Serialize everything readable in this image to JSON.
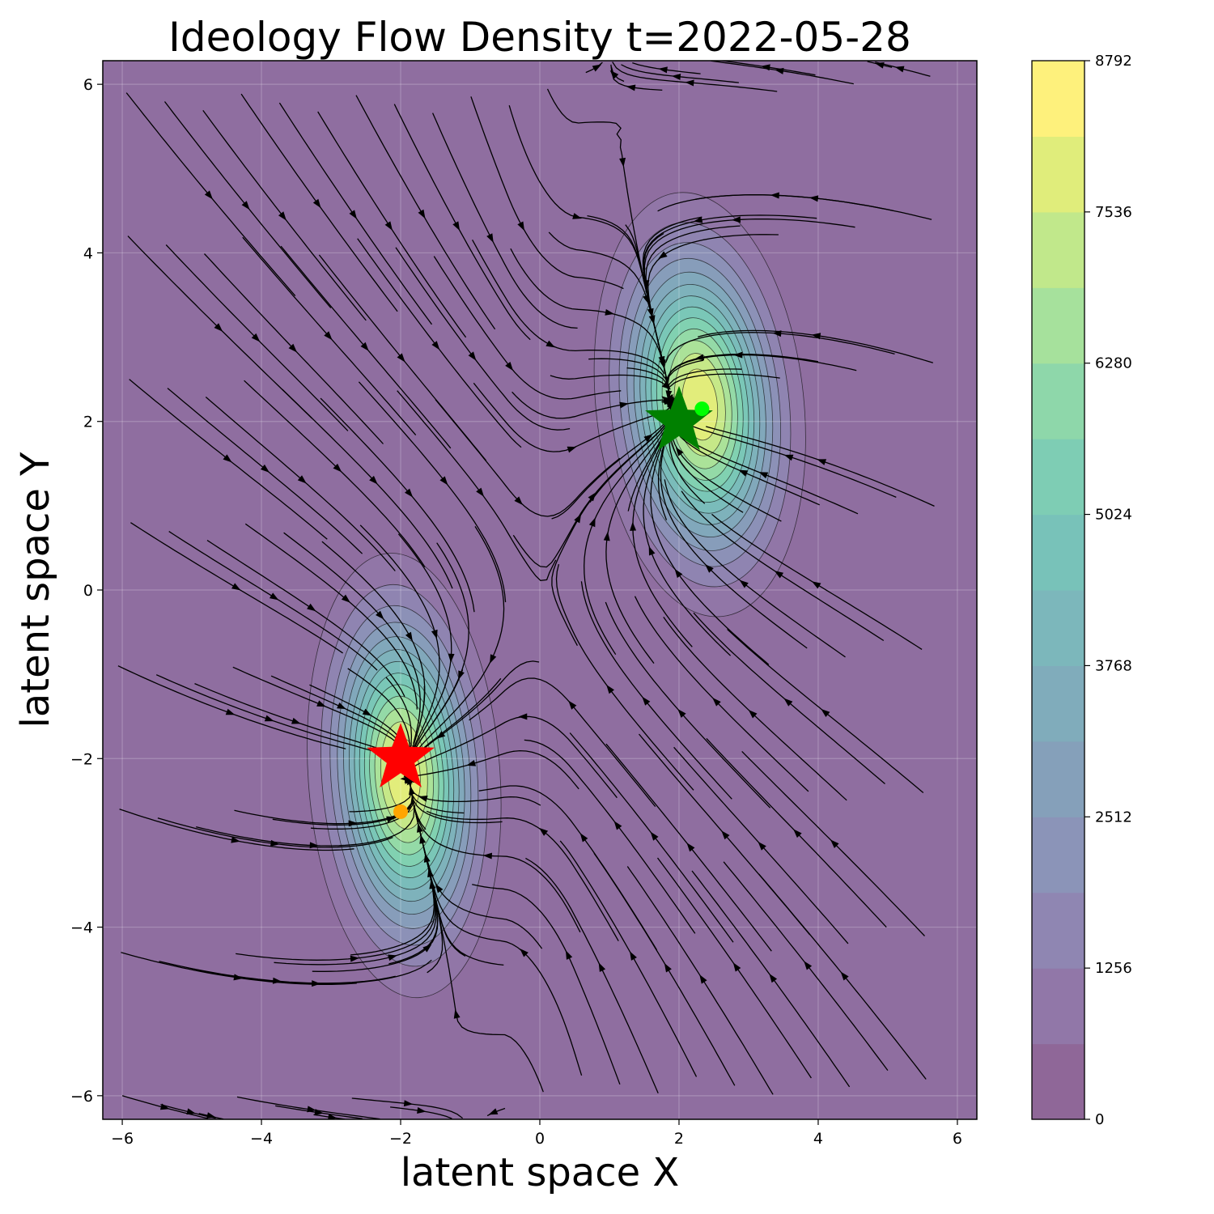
{
  "chart_data": {
    "type": "contour",
    "title": "Ideology Flow Density t=2022-05-28",
    "xlabel": "latent space X",
    "ylabel": "latent space Y",
    "xlim": [
      -6.28,
      6.28
    ],
    "ylim": [
      -6.28,
      6.28
    ],
    "x_ticks": [
      -6,
      -4,
      -2,
      0,
      2,
      4,
      6
    ],
    "y_ticks": [
      -6,
      -4,
      -2,
      0,
      2,
      4,
      6
    ],
    "grid": true,
    "density_peaks": [
      {
        "x": 2.3,
        "y": 2.2,
        "sx": 0.65,
        "sy": 1.1,
        "amplitude": 8792
      },
      {
        "x": -1.95,
        "y": -2.2,
        "sx": 0.6,
        "sy": 1.15,
        "amplitude": 8792
      }
    ],
    "colorbar": {
      "min": 0,
      "max": 8792,
      "ticks": [
        0,
        1256,
        2512,
        3768,
        5024,
        6280,
        7536,
        8792
      ],
      "levels": 14
    },
    "markers": [
      {
        "type": "star",
        "x": 2.0,
        "y": 2.0,
        "color": "#008000"
      },
      {
        "type": "star",
        "x": -2.0,
        "y": -2.0,
        "color": "#ff0000"
      },
      {
        "type": "dot",
        "x": 2.33,
        "y": 2.15,
        "color": "#00ff00"
      },
      {
        "type": "dot",
        "x": -2.0,
        "y": -2.63,
        "color": "#ffa500"
      }
    ]
  }
}
